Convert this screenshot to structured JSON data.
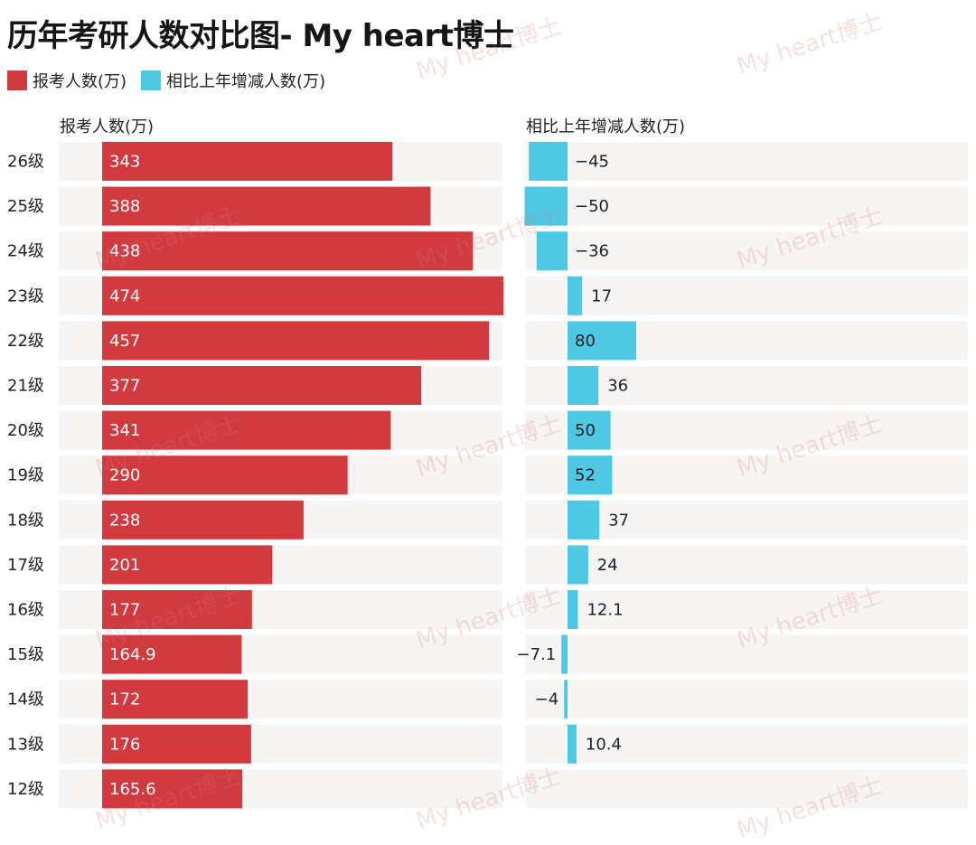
{
  "title": "历年考研人数对比图- My heart博士",
  "legend": [
    {
      "label": "报考人数(万)",
      "color": "#d13b40"
    },
    {
      "label": "相比上年增减人数(万)",
      "color": "#4fc8e3"
    }
  ],
  "watermark_text": "My heart博士",
  "colors": {
    "bar_left": "#d13b40",
    "bar_right": "#4fc8e3",
    "row_bg": "#f6f5f3"
  },
  "chart_data": [
    {
      "type": "bar",
      "orientation": "horizontal",
      "title": "报考人数(万)",
      "categories": [
        "26级",
        "25级",
        "24级",
        "23级",
        "22级",
        "21级",
        "20级",
        "19级",
        "18级",
        "17级",
        "16级",
        "15级",
        "14级",
        "13级",
        "12级"
      ],
      "values": [
        343,
        388,
        438,
        474,
        457,
        377,
        341,
        290,
        238,
        201,
        177,
        164.9,
        172,
        176,
        165.6
      ],
      "labels": [
        "343",
        "388",
        "438",
        "474",
        "457",
        "377",
        "341",
        "290",
        "238",
        "201",
        "177",
        "164.9",
        "172",
        "176",
        "165.6"
      ],
      "xlim": [
        0,
        474
      ]
    },
    {
      "type": "bar",
      "orientation": "horizontal",
      "title": "相比上年增减人数(万)",
      "categories": [
        "26级",
        "25级",
        "24级",
        "23级",
        "22级",
        "21级",
        "20级",
        "19级",
        "18级",
        "17级",
        "16级",
        "15级",
        "14级",
        "13级",
        "12级"
      ],
      "values": [
        -45,
        -50,
        -36,
        17,
        80,
        36,
        50,
        52,
        37,
        24,
        12.1,
        -7.1,
        -4,
        10.4,
        null
      ],
      "labels": [
        "−45",
        "−50",
        "−36",
        "17",
        "80",
        "36",
        "50",
        "52",
        "37",
        "24",
        "12.1",
        "−7.1",
        "−4",
        "10.4",
        ""
      ]
    }
  ]
}
